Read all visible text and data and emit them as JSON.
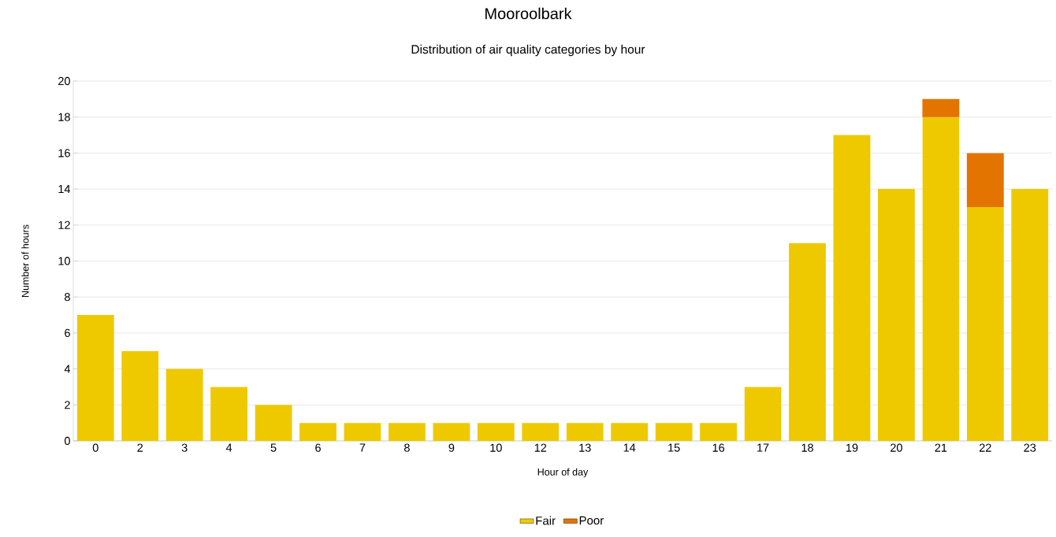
{
  "chart_data": {
    "type": "bar",
    "title": "Mooroolbark",
    "subtitle": "Distribution of air quality categories by hour",
    "xlabel": "Hour of day",
    "ylabel": "Number of hours",
    "categories": [
      "0",
      "2",
      "3",
      "4",
      "5",
      "6",
      "7",
      "8",
      "9",
      "10",
      "12",
      "13",
      "14",
      "15",
      "16",
      "17",
      "18",
      "19",
      "20",
      "21",
      "22",
      "23"
    ],
    "series": [
      {
        "name": "Fair",
        "color": "#eec900",
        "values": [
          7,
          5,
          4,
          3,
          2,
          1,
          1,
          1,
          1,
          1,
          1,
          1,
          1,
          1,
          1,
          3,
          11,
          17,
          14,
          18,
          13,
          14
        ]
      },
      {
        "name": "Poor",
        "color": "#e37400",
        "values": [
          null,
          null,
          null,
          null,
          null,
          null,
          null,
          null,
          null,
          null,
          null,
          null,
          null,
          null,
          null,
          null,
          null,
          null,
          null,
          1,
          3,
          null
        ]
      }
    ],
    "stacked": true,
    "ylim": [
      0,
      20
    ],
    "yticks": [
      0,
      2,
      4,
      6,
      8,
      10,
      12,
      14,
      16,
      18,
      20
    ],
    "grid": "y",
    "legend": "bottom"
  }
}
